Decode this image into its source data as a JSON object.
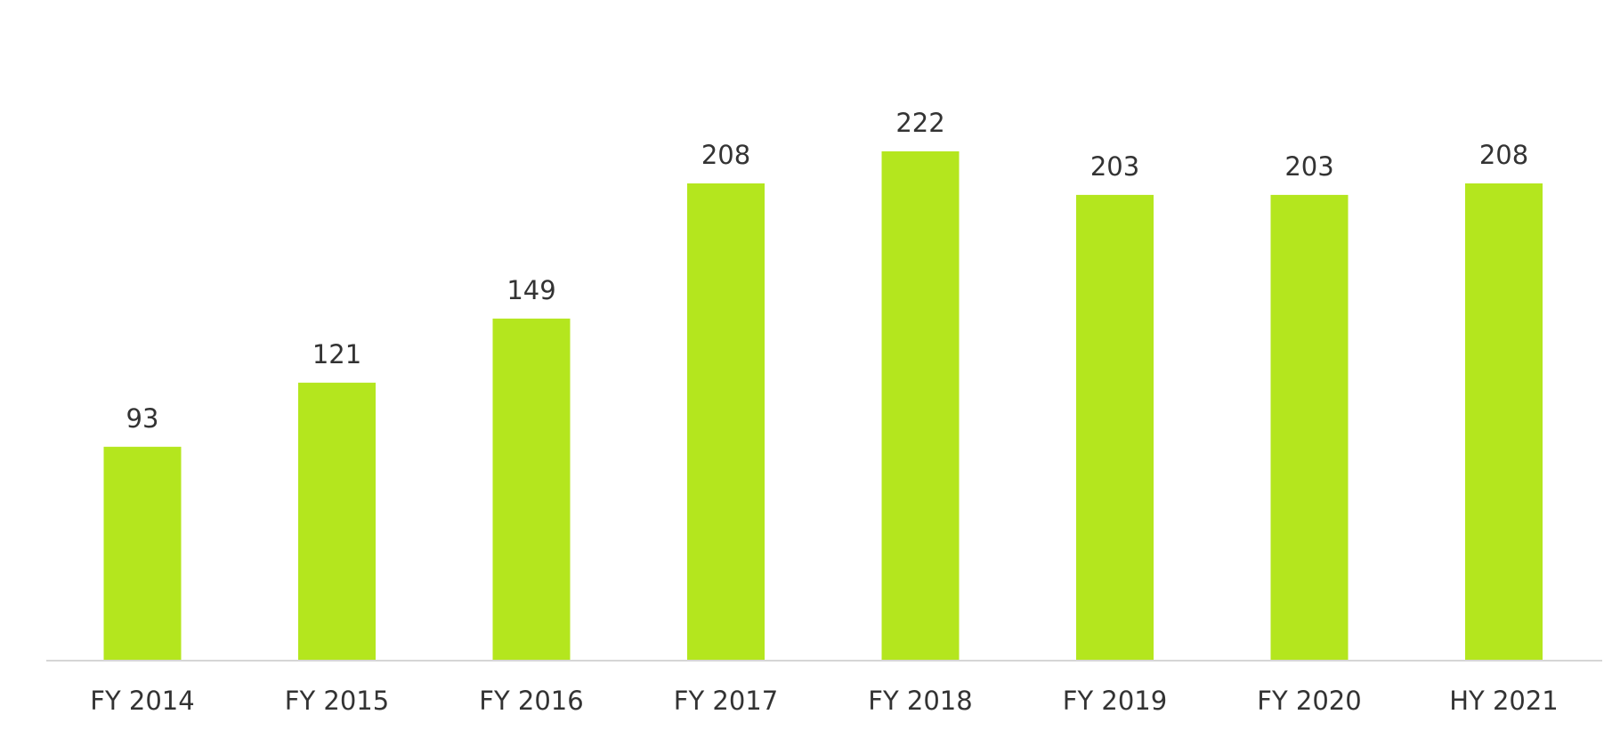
{
  "colors": {
    "bar": "#b4e61e",
    "axis": "#d6d6d6",
    "text": "#333333",
    "background": "#ffffff"
  },
  "chart_data": {
    "type": "bar",
    "categories": [
      "FY 2014",
      "FY 2015",
      "FY 2016",
      "FY 2017",
      "FY 2018",
      "FY 2019",
      "FY 2020",
      "HY 2021"
    ],
    "values": [
      93,
      121,
      149,
      208,
      222,
      203,
      203,
      208
    ],
    "data_labels": [
      "93",
      "121",
      "149",
      "208",
      "222",
      "203",
      "203",
      "208"
    ],
    "ylim": [
      0,
      222
    ],
    "grid": false,
    "legend": "none"
  }
}
